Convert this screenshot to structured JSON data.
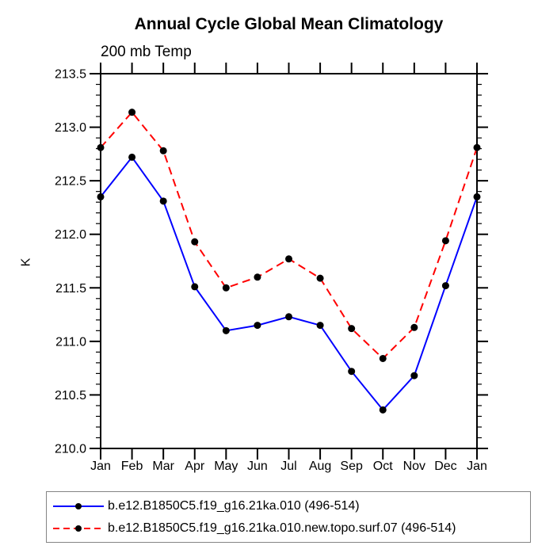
{
  "title": "Annual Cycle Global Mean Climatology",
  "chart_data": {
    "type": "line",
    "title": "Annual Cycle Global Mean Climatology",
    "subtitle_left": "200 mb Temp",
    "ylabel": "K",
    "xlabel": "",
    "x_categories": [
      "Jan",
      "Feb",
      "Mar",
      "Apr",
      "May",
      "Jun",
      "Jul",
      "Aug",
      "Sep",
      "Oct",
      "Nov",
      "Dec",
      "Jan"
    ],
    "ylim": [
      210.0,
      213.5
    ],
    "ytick_major": 0.5,
    "ytick_minor": 0.1,
    "grid": false,
    "legend_position": "bottom-left",
    "axis_color": "#000000",
    "marker_color": "#000000",
    "series": [
      {
        "name": "b.e12.B1850C5.f19_g16.21ka.010 (496-514)",
        "color": "#0000ff",
        "line_style": "solid",
        "marker": "filled-circle",
        "values": [
          212.35,
          212.72,
          212.31,
          211.51,
          211.1,
          211.15,
          211.23,
          211.15,
          210.72,
          210.36,
          210.68,
          211.52,
          212.35
        ]
      },
      {
        "name": "b.e12.B1850C5.f19_g16.21ka.010.new.topo.surf.07 (496-514)",
        "color": "#ff0000",
        "line_style": "dashed",
        "marker": "filled-circle",
        "values": [
          212.81,
          213.14,
          212.78,
          211.93,
          211.5,
          211.6,
          211.77,
          211.59,
          211.12,
          210.84,
          211.13,
          211.94,
          212.81
        ]
      }
    ]
  }
}
